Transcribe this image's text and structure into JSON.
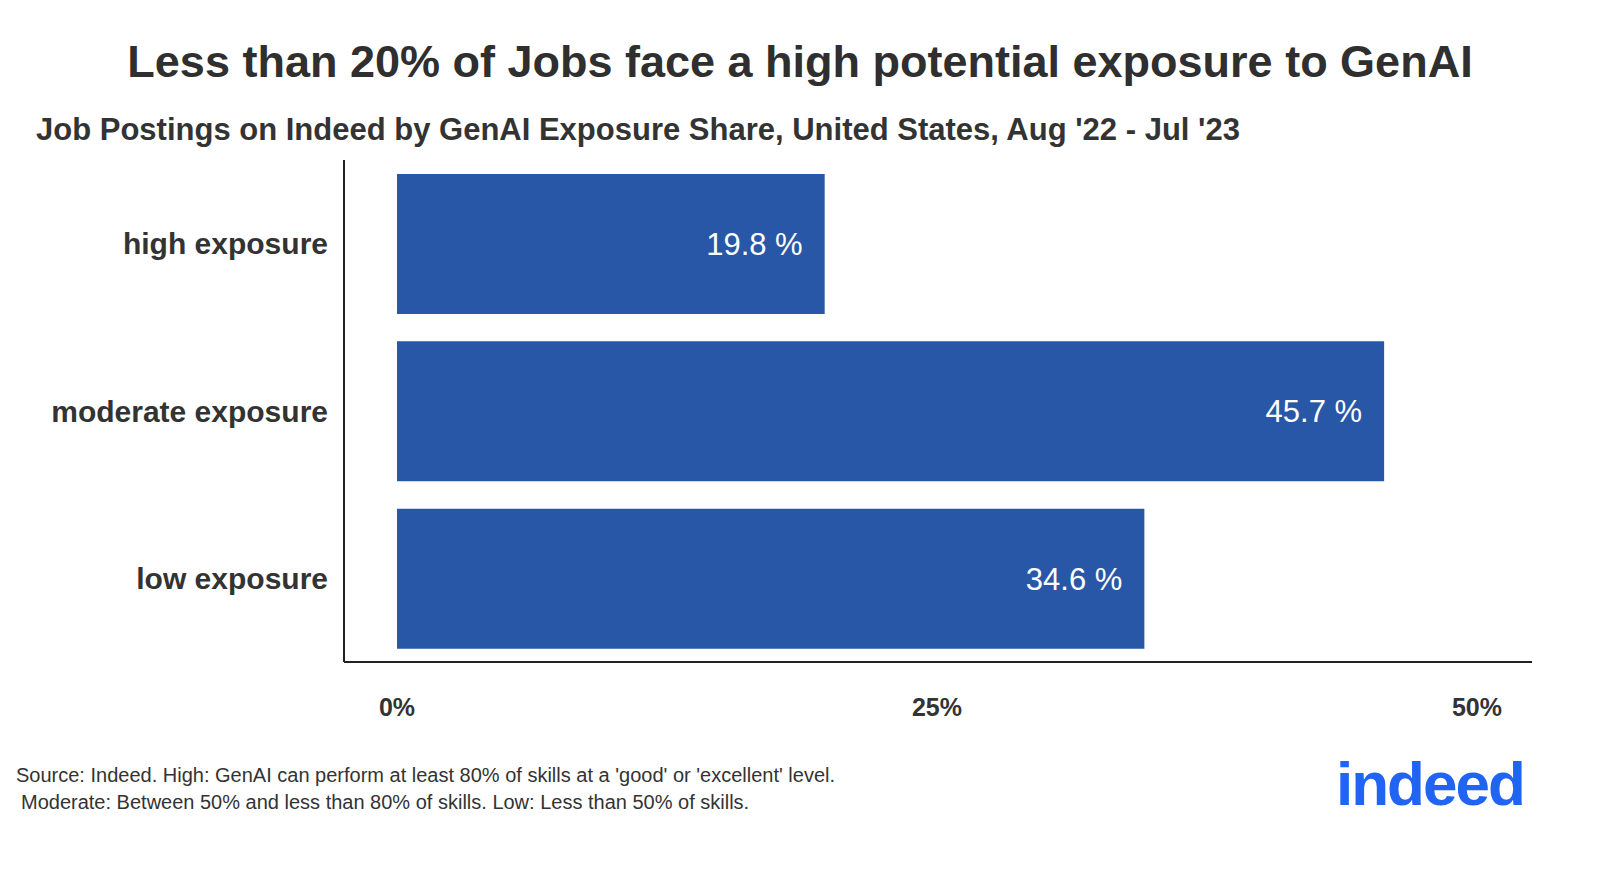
{
  "chart_data": {
    "type": "bar",
    "title": "Less than 20% of Jobs face a high potential exposure to GenAI",
    "subtitle": "Job Postings on Indeed by GenAI Exposure Share, United States, Aug '22 - Jul '23",
    "categories": [
      "high exposure",
      "moderate exposure",
      "low exposure"
    ],
    "values": [
      19.8,
      45.7,
      34.6
    ],
    "value_labels": [
      "19.8 %",
      "45.7 %",
      "34.6 %"
    ],
    "color": "#2757a6",
    "orientation": "horizontal",
    "data_labels": true,
    "grid": false,
    "xlim": [
      0,
      50
    ],
    "xticks": [
      {
        "value": 0,
        "label": "0%"
      },
      {
        "value": 25,
        "label": "25%"
      },
      {
        "value": 50,
        "label": "50%"
      }
    ],
    "source": [
      "Source: Indeed. High: GenAI can perform at least 80% of skills at a 'good' or 'excellent' level.",
      "Moderate: Between 50% and less than 80% of skills. Low: Less than 50% of skills."
    ],
    "logo": "indeed"
  }
}
